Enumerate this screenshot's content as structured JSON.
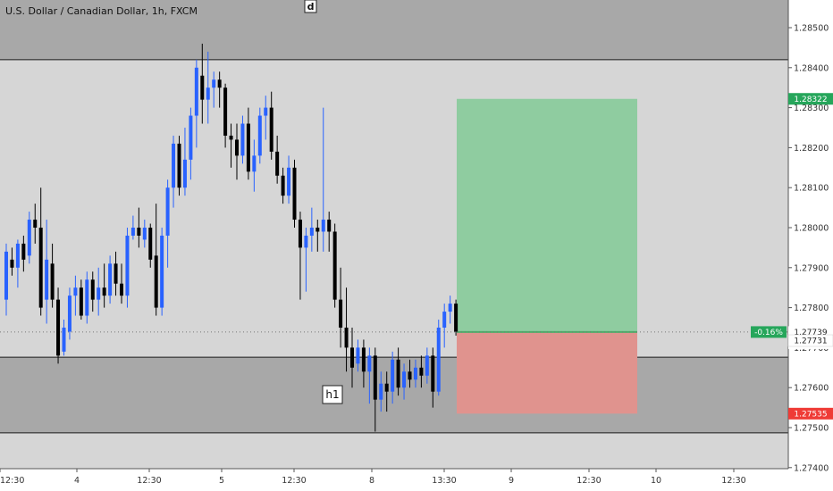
{
  "header": {
    "title": "U.S. Dollar / Canadian Dollar, 1h, FXCM"
  },
  "markers": {
    "d_label": "d",
    "h1_label": "h1"
  },
  "colors": {
    "bull": "#2962ff",
    "bear": "#000000",
    "zone_fill": "#a8a8a8",
    "chart_bg": "#d6d6d6",
    "profit_fill": "#8fcca0",
    "loss_fill": "#e0938e",
    "profit_badge": "#26a65b",
    "loss_badge": "#ef3b36"
  },
  "price_tags": {
    "target": "1.28322",
    "current_change": "-0.16%",
    "current": "1.27739",
    "countdown": "46:46",
    "zone_level": "1.27731",
    "stop": "1.27535"
  },
  "chart_data": {
    "type": "candlestick",
    "title": "U.S. Dollar / Canadian Dollar, 1h, FXCM",
    "ylim": [
      1.274,
      1.286
    ],
    "y_ticks": [
      "1.28500",
      "1.28400",
      "1.28300",
      "1.28200",
      "1.28100",
      "1.28000",
      "1.27900",
      "1.27800",
      "1.27700",
      "1.27600",
      "1.27500",
      "1.27400"
    ],
    "x_ticks": [
      "12:30",
      "4",
      "12:30",
      "5",
      "12:30",
      "8",
      "13:30",
      "9",
      "12:30",
      "10",
      "12:30"
    ],
    "grid": false,
    "zones": [
      {
        "name": "upper",
        "from": 1.2842,
        "to": 1.287
      },
      {
        "name": "lower",
        "from": 1.27487,
        "to": 1.27676
      }
    ],
    "position": {
      "type": "long",
      "entry": 1.27739,
      "target": 1.28322,
      "stop": 1.27535
    },
    "candles": [
      [
        1.2782,
        1.2796,
        1.2778,
        1.2794
      ],
      [
        1.2792,
        1.2795,
        1.2788,
        1.279
      ],
      [
        1.279,
        1.2797,
        1.2785,
        1.2796
      ],
      [
        1.2796,
        1.2798,
        1.2789,
        1.2792
      ],
      [
        1.2793,
        1.2804,
        1.2791,
        1.2802
      ],
      [
        1.2802,
        1.2806,
        1.2796,
        1.28
      ],
      [
        1.28,
        1.281,
        1.2778,
        1.278
      ],
      [
        1.2782,
        1.2802,
        1.2776,
        1.2792
      ],
      [
        1.2791,
        1.2796,
        1.278,
        1.2782
      ],
      [
        1.2782,
        1.2785,
        1.2766,
        1.2768
      ],
      [
        1.2769,
        1.2777,
        1.2768,
        1.2775
      ],
      [
        1.2774,
        1.2785,
        1.2772,
        1.2783
      ],
      [
        1.2783,
        1.2788,
        1.2778,
        1.2785
      ],
      [
        1.2785,
        1.2787,
        1.2777,
        1.2778
      ],
      [
        1.2778,
        1.2789,
        1.2776,
        1.2787
      ],
      [
        1.2787,
        1.2789,
        1.2779,
        1.2782
      ],
      [
        1.2782,
        1.279,
        1.2778,
        1.2785
      ],
      [
        1.2785,
        1.2791,
        1.278,
        1.2783
      ],
      [
        1.2783,
        1.2793,
        1.2781,
        1.2791
      ],
      [
        1.2791,
        1.2794,
        1.2783,
        1.2786
      ],
      [
        1.2786,
        1.2791,
        1.2781,
        1.2783
      ],
      [
        1.2783,
        1.28,
        1.278,
        1.2798
      ],
      [
        1.2798,
        1.2803,
        1.2797,
        1.28
      ],
      [
        1.28,
        1.2805,
        1.2795,
        1.2798
      ],
      [
        1.2797,
        1.2802,
        1.2795,
        1.28
      ],
      [
        1.28,
        1.2801,
        1.279,
        1.2792
      ],
      [
        1.2793,
        1.2806,
        1.2778,
        1.278
      ],
      [
        1.278,
        1.28,
        1.2778,
        1.2798
      ],
      [
        1.2798,
        1.2812,
        1.279,
        1.281
      ],
      [
        1.281,
        1.2823,
        1.2805,
        1.2821
      ],
      [
        1.2821,
        1.2823,
        1.2808,
        1.281
      ],
      [
        1.281,
        1.2825,
        1.2808,
        1.2817
      ],
      [
        1.2817,
        1.283,
        1.2812,
        1.2828
      ],
      [
        1.2828,
        1.2842,
        1.282,
        1.284
      ],
      [
        1.2838,
        1.2846,
        1.2826,
        1.2832
      ],
      [
        1.2832,
        1.2844,
        1.2826,
        1.2835
      ],
      [
        1.2835,
        1.2839,
        1.283,
        1.2837
      ],
      [
        1.2837,
        1.2839,
        1.283,
        1.2835
      ],
      [
        1.2835,
        1.2836,
        1.282,
        1.2823
      ],
      [
        1.2823,
        1.2826,
        1.2815,
        1.2822
      ],
      [
        1.2822,
        1.2826,
        1.2812,
        1.2818
      ],
      [
        1.2818,
        1.2828,
        1.2816,
        1.2826
      ],
      [
        1.2826,
        1.283,
        1.2812,
        1.2814
      ],
      [
        1.2814,
        1.2822,
        1.2809,
        1.2818
      ],
      [
        1.2818,
        1.283,
        1.2816,
        1.2828
      ],
      [
        1.2828,
        1.2833,
        1.2822,
        1.283
      ],
      [
        1.283,
        1.2834,
        1.2817,
        1.2819
      ],
      [
        1.2819,
        1.2823,
        1.2811,
        1.2813
      ],
      [
        1.2813,
        1.2815,
        1.2806,
        1.2808
      ],
      [
        1.2808,
        1.2818,
        1.2806,
        1.2815
      ],
      [
        1.2815,
        1.2817,
        1.28,
        1.2802
      ],
      [
        1.2802,
        1.2804,
        1.2782,
        1.2795
      ],
      [
        1.2795,
        1.28,
        1.2784,
        1.2798
      ],
      [
        1.2798,
        1.2805,
        1.2794,
        1.28
      ],
      [
        1.28,
        1.2802,
        1.2794,
        1.2799
      ],
      [
        1.2799,
        1.283,
        1.2794,
        1.2802
      ],
      [
        1.2802,
        1.2804,
        1.2794,
        1.2799
      ],
      [
        1.2799,
        1.2801,
        1.278,
        1.2782
      ],
      [
        1.2782,
        1.279,
        1.277,
        1.2775
      ],
      [
        1.2775,
        1.2785,
        1.2764,
        1.277
      ],
      [
        1.277,
        1.2775,
        1.276,
        1.2765
      ],
      [
        1.2766,
        1.2772,
        1.2764,
        1.277
      ],
      [
        1.277,
        1.2772,
        1.276,
        1.2764
      ],
      [
        1.2764,
        1.277,
        1.2756,
        1.2768
      ],
      [
        1.2768,
        1.277,
        1.2749,
        1.2757
      ],
      [
        1.2757,
        1.2764,
        1.2754,
        1.2761
      ],
      [
        1.2761,
        1.2764,
        1.2754,
        1.2759
      ],
      [
        1.2759,
        1.2769,
        1.2756,
        1.2767
      ],
      [
        1.2767,
        1.277,
        1.2758,
        1.276
      ],
      [
        1.276,
        1.2766,
        1.2757,
        1.2764
      ],
      [
        1.2764,
        1.2767,
        1.276,
        1.2762
      ],
      [
        1.2762,
        1.2767,
        1.276,
        1.2765
      ],
      [
        1.2765,
        1.2768,
        1.276,
        1.2763
      ],
      [
        1.2763,
        1.277,
        1.2761,
        1.2768
      ],
      [
        1.2768,
        1.277,
        1.2755,
        1.2759
      ],
      [
        1.2759,
        1.2777,
        1.2758,
        1.2775
      ],
      [
        1.2775,
        1.2781,
        1.277,
        1.2779
      ],
      [
        1.2779,
        1.2783,
        1.2776,
        1.2781
      ],
      [
        1.2781,
        1.2782,
        1.2773,
        1.2774
      ]
    ]
  }
}
